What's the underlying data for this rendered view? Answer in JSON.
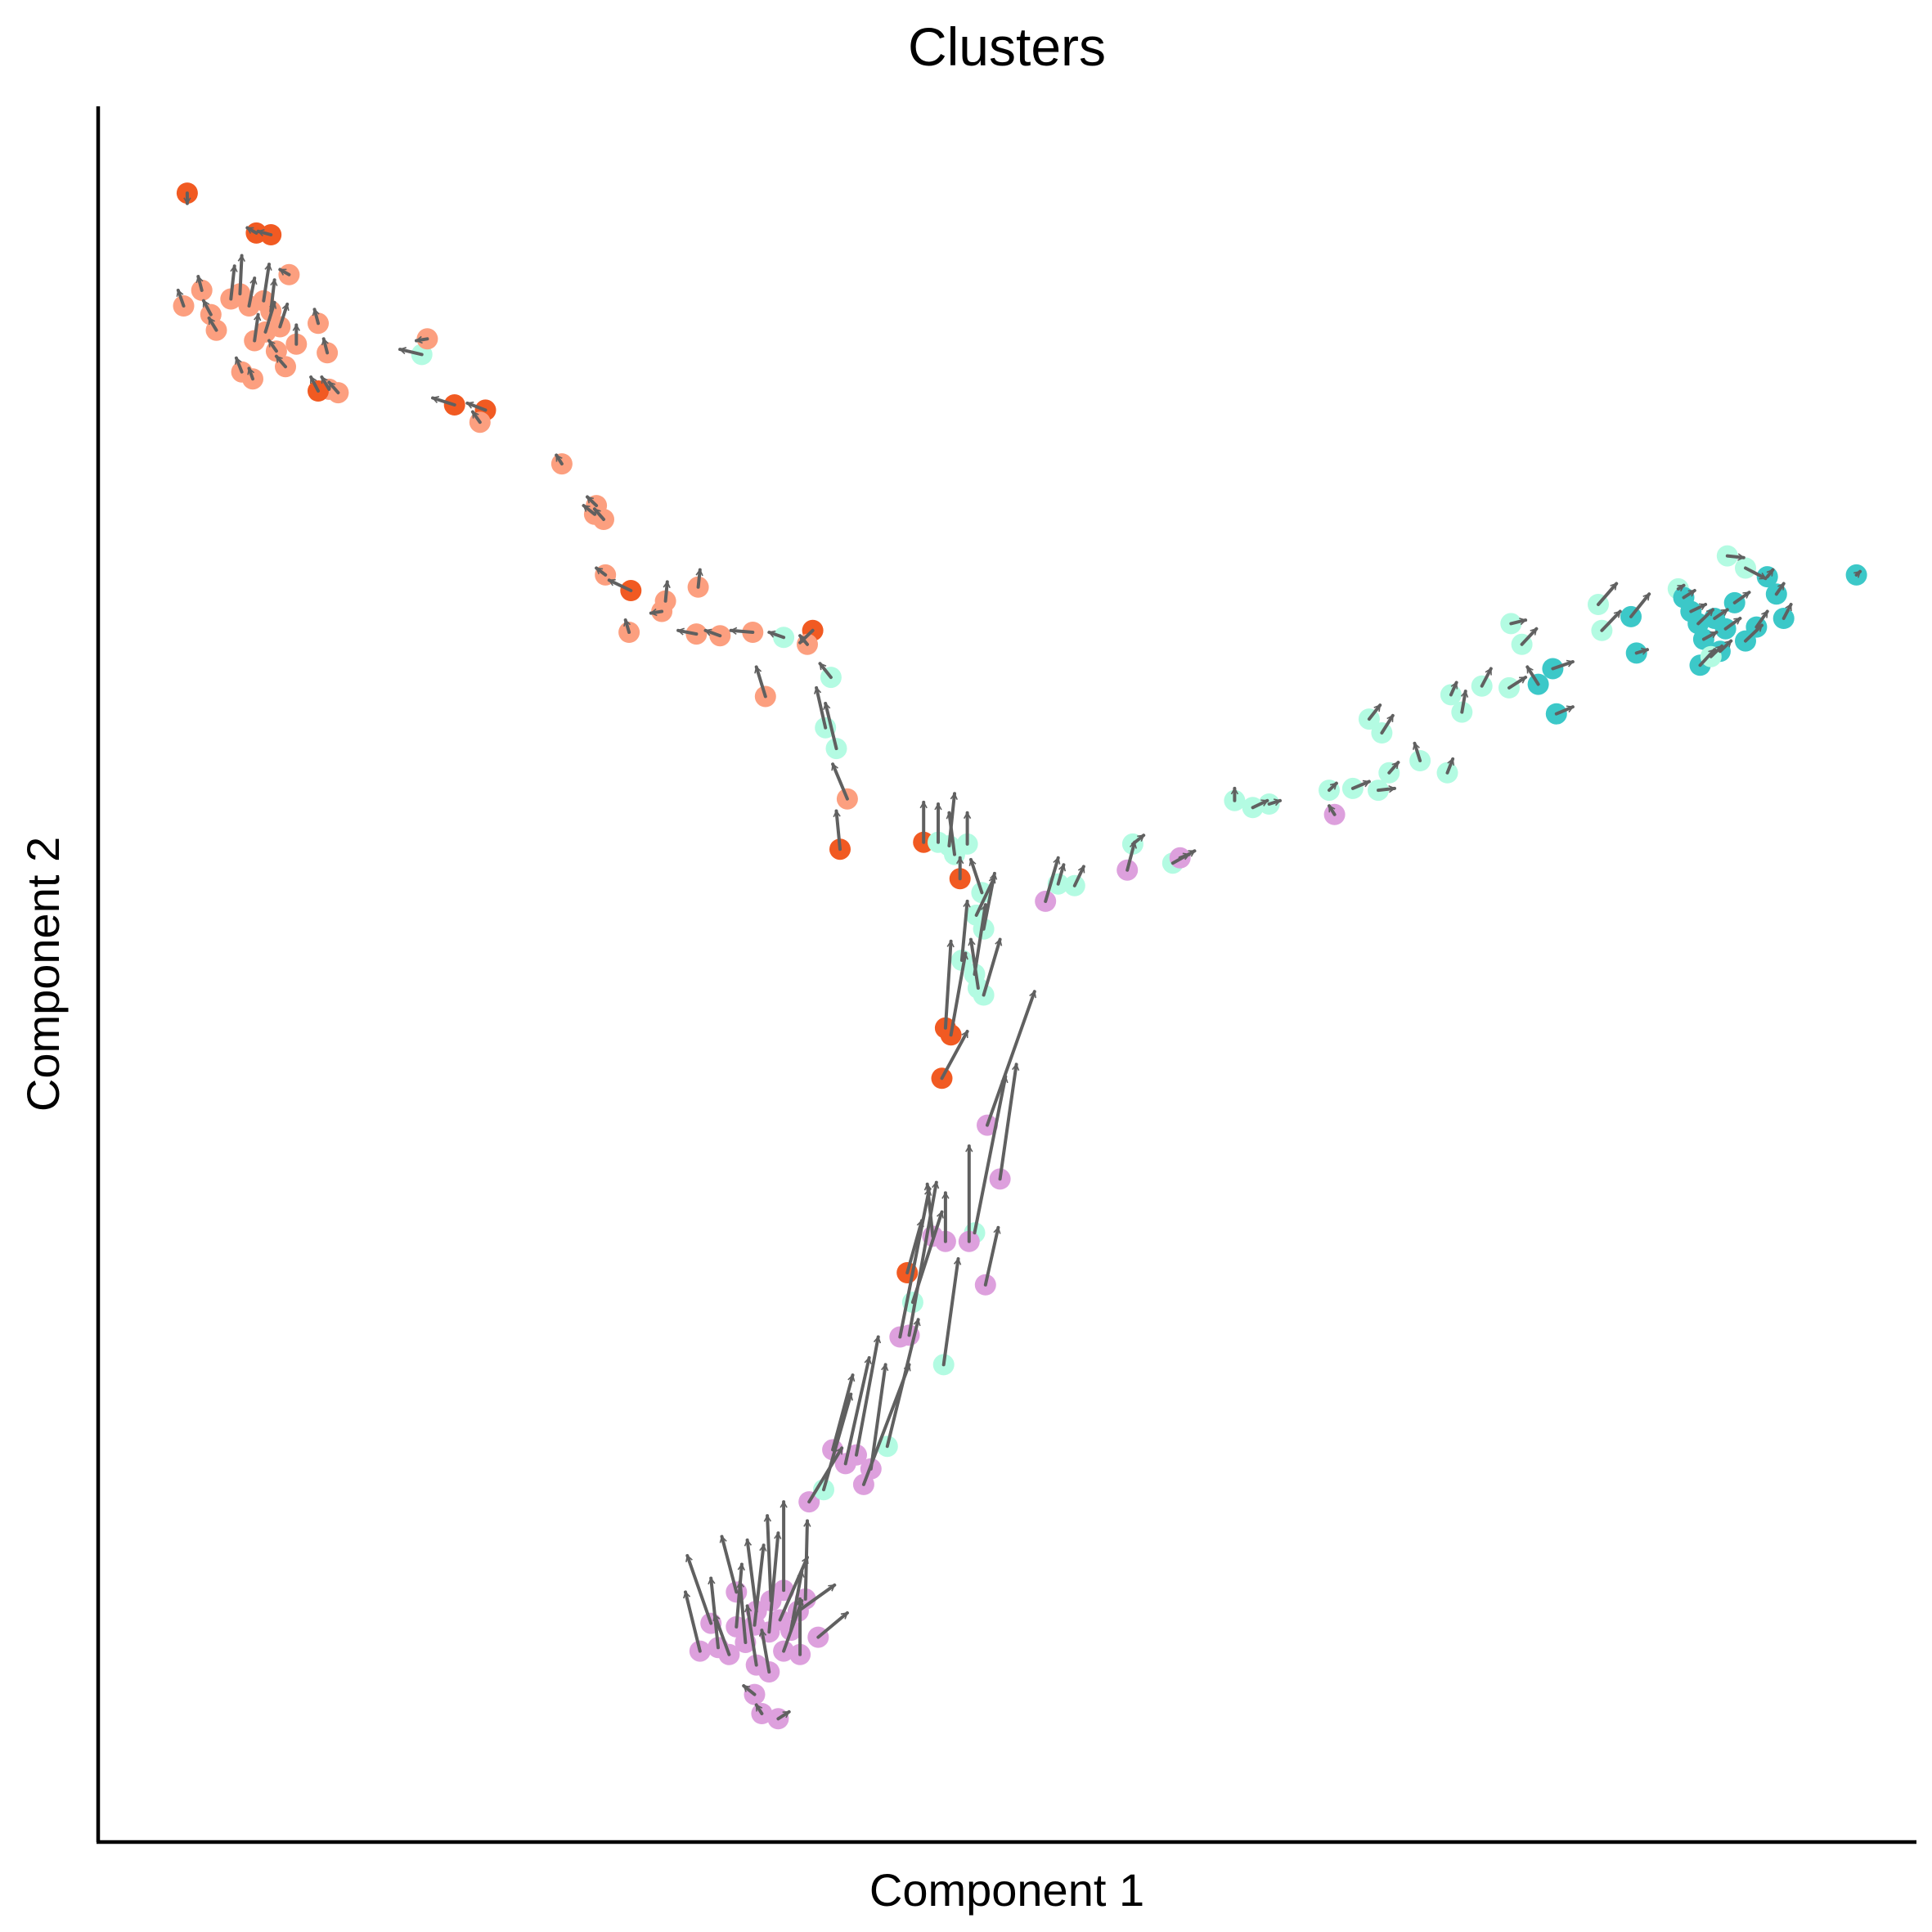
{
  "chart_data": {
    "type": "scatter",
    "title": "Clusters",
    "xlabel": "Component 1",
    "ylabel": "Component 2",
    "grid": false,
    "legend": "none",
    "xlim": [
      0,
      100
    ],
    "ylim": [
      0,
      100
    ],
    "colors": {
      "dark_orange": "#f15a22",
      "light_orange": "#fc9f7f",
      "mint": "#b3fbe2",
      "teal": "#3cc8c8",
      "orchid": "#dda0dd",
      "arrow": "#606060"
    },
    "points": [
      {
        "x": 4.9,
        "y": 95.0,
        "c": "dark_orange",
        "dx": 0.0,
        "dy": -0.6
      },
      {
        "x": 8.7,
        "y": 92.7,
        "c": "dark_orange",
        "dx": -0.5,
        "dy": 0.3
      },
      {
        "x": 9.5,
        "y": 92.6,
        "c": "dark_orange",
        "dx": -0.7,
        "dy": 0.2
      },
      {
        "x": 10.5,
        "y": 90.3,
        "c": "light_orange",
        "dx": -0.5,
        "dy": 0.3
      },
      {
        "x": 5.7,
        "y": 89.4,
        "c": "light_orange",
        "dx": -0.2,
        "dy": 0.8
      },
      {
        "x": 4.7,
        "y": 88.5,
        "c": "light_orange",
        "dx": -0.3,
        "dy": 0.9
      },
      {
        "x": 6.2,
        "y": 88.0,
        "c": "light_orange",
        "dx": -0.4,
        "dy": 0.8
      },
      {
        "x": 6.5,
        "y": 87.1,
        "c": "light_orange",
        "dx": -0.4,
        "dy": 0.7
      },
      {
        "x": 7.3,
        "y": 88.9,
        "c": "light_orange",
        "dx": 0.2,
        "dy": 1.9
      },
      {
        "x": 7.8,
        "y": 89.2,
        "c": "light_orange",
        "dx": 0.1,
        "dy": 2.2
      },
      {
        "x": 8.3,
        "y": 88.5,
        "c": "light_orange",
        "dx": 0.3,
        "dy": 1.6
      },
      {
        "x": 9.1,
        "y": 88.8,
        "c": "light_orange",
        "dx": 0.3,
        "dy": 2.1
      },
      {
        "x": 9.5,
        "y": 88.2,
        "c": "light_orange",
        "dx": 0.2,
        "dy": 1.8
      },
      {
        "x": 10.0,
        "y": 87.3,
        "c": "light_orange",
        "dx": 0.4,
        "dy": 1.3
      },
      {
        "x": 9.2,
        "y": 87.0,
        "c": "light_orange",
        "dx": 0.5,
        "dy": 1.7
      },
      {
        "x": 8.6,
        "y": 86.5,
        "c": "light_orange",
        "dx": 0.2,
        "dy": 1.5
      },
      {
        "x": 10.9,
        "y": 86.3,
        "c": "light_orange",
        "dx": 0.0,
        "dy": 1.1
      },
      {
        "x": 9.8,
        "y": 85.9,
        "c": "light_orange",
        "dx": -0.4,
        "dy": 0.6
      },
      {
        "x": 12.1,
        "y": 87.5,
        "c": "light_orange",
        "dx": -0.2,
        "dy": 0.8
      },
      {
        "x": 12.6,
        "y": 85.8,
        "c": "light_orange",
        "dx": -0.2,
        "dy": 0.8
      },
      {
        "x": 10.3,
        "y": 85.0,
        "c": "light_orange",
        "dx": -0.5,
        "dy": 0.6
      },
      {
        "x": 7.9,
        "y": 84.7,
        "c": "light_orange",
        "dx": -0.3,
        "dy": 0.8
      },
      {
        "x": 8.5,
        "y": 84.3,
        "c": "light_orange",
        "dx": -0.2,
        "dy": 0.6
      },
      {
        "x": 12.7,
        "y": 83.7,
        "c": "light_orange",
        "dx": -0.4,
        "dy": 0.7
      },
      {
        "x": 13.2,
        "y": 83.5,
        "c": "light_orange",
        "dx": -0.5,
        "dy": 0.6
      },
      {
        "x": 12.1,
        "y": 83.6,
        "c": "dark_orange",
        "dx": -0.4,
        "dy": 0.8
      },
      {
        "x": 17.8,
        "y": 85.7,
        "c": "mint",
        "dx": -1.2,
        "dy": 0.3
      },
      {
        "x": 18.1,
        "y": 86.6,
        "c": "light_orange",
        "dx": -0.6,
        "dy": -0.1
      },
      {
        "x": 19.6,
        "y": 82.8,
        "c": "dark_orange",
        "dx": -1.2,
        "dy": 0.4
      },
      {
        "x": 21.3,
        "y": 82.5,
        "c": "dark_orange",
        "dx": -1.0,
        "dy": 0.4
      },
      {
        "x": 21.0,
        "y": 81.8,
        "c": "light_orange",
        "dx": -0.4,
        "dy": 0.6
      },
      {
        "x": 25.5,
        "y": 79.4,
        "c": "light_orange",
        "dx": -0.3,
        "dy": 0.5
      },
      {
        "x": 27.4,
        "y": 77.0,
        "c": "light_orange",
        "dx": -0.5,
        "dy": 0.5
      },
      {
        "x": 27.3,
        "y": 76.5,
        "c": "light_orange",
        "dx": -0.6,
        "dy": 0.5
      },
      {
        "x": 27.8,
        "y": 76.2,
        "c": "light_orange",
        "dx": -0.5,
        "dy": 0.6
      },
      {
        "x": 27.9,
        "y": 73.0,
        "c": "light_orange",
        "dx": -0.5,
        "dy": 0.4
      },
      {
        "x": 29.3,
        "y": 72.1,
        "c": "dark_orange",
        "dx": -1.2,
        "dy": 0.6
      },
      {
        "x": 29.2,
        "y": 69.7,
        "c": "light_orange",
        "dx": -0.2,
        "dy": 0.7
      },
      {
        "x": 31.2,
        "y": 71.5,
        "c": "light_orange",
        "dx": 0.1,
        "dy": 1.1
      },
      {
        "x": 33.0,
        "y": 72.3,
        "c": "light_orange",
        "dx": 0.1,
        "dy": 1.0
      },
      {
        "x": 31.0,
        "y": 70.9,
        "c": "light_orange",
        "dx": -0.6,
        "dy": -0.1
      },
      {
        "x": 32.9,
        "y": 69.6,
        "c": "light_orange",
        "dx": -1.0,
        "dy": 0.2
      },
      {
        "x": 34.2,
        "y": 69.5,
        "c": "light_orange",
        "dx": -0.8,
        "dy": 0.3
      },
      {
        "x": 36.0,
        "y": 69.7,
        "c": "light_orange",
        "dx": -1.2,
        "dy": 0.1
      },
      {
        "x": 37.7,
        "y": 69.4,
        "c": "mint",
        "dx": -0.8,
        "dy": 0.3
      },
      {
        "x": 39.3,
        "y": 69.8,
        "c": "dark_orange",
        "dx": -0.7,
        "dy": -0.7
      },
      {
        "x": 39.0,
        "y": 69.0,
        "c": "light_orange",
        "dx": -0.4,
        "dy": 0.5
      },
      {
        "x": 36.7,
        "y": 66.0,
        "c": "light_orange",
        "dx": -0.5,
        "dy": 1.7
      },
      {
        "x": 40.3,
        "y": 67.1,
        "c": "mint",
        "dx": -0.6,
        "dy": 0.8
      },
      {
        "x": 40.0,
        "y": 64.2,
        "c": "mint",
        "dx": -0.5,
        "dy": 2.3
      },
      {
        "x": 40.6,
        "y": 63.0,
        "c": "mint",
        "dx": -0.6,
        "dy": 2.6
      },
      {
        "x": 41.2,
        "y": 60.1,
        "c": "light_orange",
        "dx": -0.8,
        "dy": 2.0
      },
      {
        "x": 40.8,
        "y": 57.2,
        "c": "dark_orange",
        "dx": -0.2,
        "dy": 2.2
      },
      {
        "x": 45.4,
        "y": 57.6,
        "c": "dark_orange",
        "dx": 0.0,
        "dy": 2.3
      },
      {
        "x": 46.2,
        "y": 57.6,
        "c": "mint",
        "dx": 0.0,
        "dy": 2.2
      },
      {
        "x": 46.8,
        "y": 57.4,
        "c": "mint",
        "dx": 0.3,
        "dy": 3.0
      },
      {
        "x": 47.1,
        "y": 56.9,
        "c": "mint",
        "dx": -0.3,
        "dy": 2.4
      },
      {
        "x": 47.8,
        "y": 57.5,
        "c": "mint",
        "dx": 0.0,
        "dy": 1.8
      },
      {
        "x": 47.4,
        "y": 55.5,
        "c": "dark_orange",
        "dx": 0.0,
        "dy": 1.2
      },
      {
        "x": 48.6,
        "y": 54.7,
        "c": "mint",
        "dx": -0.6,
        "dy": 1.9
      },
      {
        "x": 48.3,
        "y": 53.4,
        "c": "mint",
        "dx": 1.0,
        "dy": 2.2
      },
      {
        "x": 48.7,
        "y": 52.6,
        "c": "mint",
        "dx": 0.6,
        "dy": 3.2
      },
      {
        "x": 47.5,
        "y": 50.8,
        "c": "mint",
        "dx": 0.3,
        "dy": 3.4
      },
      {
        "x": 48.2,
        "y": 50.0,
        "c": "mint",
        "dx": 0.6,
        "dy": 4.0
      },
      {
        "x": 48.7,
        "y": 48.8,
        "c": "mint",
        "dx": 0.9,
        "dy": 3.2
      },
      {
        "x": 48.4,
        "y": 49.2,
        "c": "mint",
        "dx": -0.4,
        "dy": 2.8
      },
      {
        "x": 46.6,
        "y": 46.9,
        "c": "dark_orange",
        "dx": 0.3,
        "dy": 5.0
      },
      {
        "x": 46.9,
        "y": 46.5,
        "c": "dark_orange",
        "dx": 0.8,
        "dy": 4.7
      },
      {
        "x": 46.4,
        "y": 44.0,
        "c": "dark_orange",
        "dx": 1.4,
        "dy": 2.7
      },
      {
        "x": 48.9,
        "y": 41.3,
        "c": "orchid",
        "dx": 2.6,
        "dy": 7.7
      },
      {
        "x": 49.6,
        "y": 38.2,
        "c": "orchid",
        "dx": 0.9,
        "dy": 6.6
      },
      {
        "x": 48.2,
        "y": 35.1,
        "c": "mint",
        "dx": 1.7,
        "dy": 9.0
      },
      {
        "x": 47.9,
        "y": 34.6,
        "c": "orchid",
        "dx": 0.0,
        "dy": 5.5
      },
      {
        "x": 45.9,
        "y": 34.9,
        "c": "orchid",
        "dx": -0.3,
        "dy": 3.0
      },
      {
        "x": 46.6,
        "y": 34.6,
        "c": "orchid",
        "dx": 0.0,
        "dy": 2.8
      },
      {
        "x": 48.8,
        "y": 32.1,
        "c": "orchid",
        "dx": 0.7,
        "dy": 3.3
      },
      {
        "x": 44.5,
        "y": 32.8,
        "c": "dark_orange",
        "dx": 0.8,
        "dy": 3.0
      },
      {
        "x": 44.8,
        "y": 31.1,
        "c": "mint",
        "dx": 1.6,
        "dy": 5.2
      },
      {
        "x": 46.5,
        "y": 27.5,
        "c": "mint",
        "dx": 0.8,
        "dy": 6.1
      },
      {
        "x": 44.1,
        "y": 29.1,
        "c": "orchid",
        "dx": 1.6,
        "dy": 8.5
      },
      {
        "x": 44.6,
        "y": 29.2,
        "c": "orchid",
        "dx": 1.5,
        "dy": 8.8
      },
      {
        "x": 43.4,
        "y": 22.8,
        "c": "mint",
        "dx": 1.7,
        "dy": 7.3
      },
      {
        "x": 42.1,
        "y": 20.6,
        "c": "orchid",
        "dx": 2.5,
        "dy": 6.9
      },
      {
        "x": 42.5,
        "y": 21.5,
        "c": "orchid",
        "dx": 0.8,
        "dy": 6.0
      },
      {
        "x": 41.7,
        "y": 22.3,
        "c": "orchid",
        "dx": 1.2,
        "dy": 6.8
      },
      {
        "x": 41.1,
        "y": 21.8,
        "c": "orchid",
        "dx": 1.3,
        "dy": 6.1
      },
      {
        "x": 40.4,
        "y": 22.6,
        "c": "orchid",
        "dx": 1.1,
        "dy": 4.3
      },
      {
        "x": 39.1,
        "y": 19.6,
        "c": "orchid",
        "dx": 1.8,
        "dy": 3.1
      },
      {
        "x": 39.9,
        "y": 20.3,
        "c": "mint",
        "dx": 1.5,
        "dy": 5.5
      },
      {
        "x": 34.1,
        "y": 11.2,
        "c": "orchid",
        "dx": -0.4,
        "dy": 4.0
      },
      {
        "x": 34.7,
        "y": 10.8,
        "c": "orchid",
        "dx": -0.8,
        "dy": 2.3
      },
      {
        "x": 35.6,
        "y": 11.5,
        "c": "orchid",
        "dx": -0.3,
        "dy": 3.5
      },
      {
        "x": 35.1,
        "y": 12.4,
        "c": "orchid",
        "dx": 0.3,
        "dy": 3.6
      },
      {
        "x": 33.1,
        "y": 11.0,
        "c": "orchid",
        "dx": -0.8,
        "dy": 3.4
      },
      {
        "x": 33.7,
        "y": 12.6,
        "c": "orchid",
        "dx": -1.3,
        "dy": 3.9
      },
      {
        "x": 36.1,
        "y": 12.5,
        "c": "orchid",
        "dx": 0.5,
        "dy": 4.6
      },
      {
        "x": 36.9,
        "y": 12.1,
        "c": "orchid",
        "dx": 0.5,
        "dy": 5.7
      },
      {
        "x": 37.5,
        "y": 12.8,
        "c": "orchid",
        "dx": 1.5,
        "dy": 3.6
      },
      {
        "x": 38.1,
        "y": 12.2,
        "c": "orchid",
        "dx": 0.6,
        "dy": 3.4
      },
      {
        "x": 37.7,
        "y": 11.0,
        "c": "orchid",
        "dx": 1.0,
        "dy": 2.9
      },
      {
        "x": 38.6,
        "y": 10.8,
        "c": "orchid",
        "dx": 0.0,
        "dy": 3.2
      },
      {
        "x": 39.6,
        "y": 11.8,
        "c": "orchid",
        "dx": 1.6,
        "dy": 1.4
      },
      {
        "x": 38.5,
        "y": 13.3,
        "c": "orchid",
        "dx": 2.0,
        "dy": 1.5
      },
      {
        "x": 36.2,
        "y": 13.3,
        "c": "orchid",
        "dx": -0.5,
        "dy": 4.1
      },
      {
        "x": 37.0,
        "y": 13.9,
        "c": "orchid",
        "dx": -0.2,
        "dy": 4.9
      },
      {
        "x": 37.7,
        "y": 14.5,
        "c": "orchid",
        "dx": 0.0,
        "dy": 5.1
      },
      {
        "x": 38.9,
        "y": 14.0,
        "c": "orchid",
        "dx": 0.1,
        "dy": 4.5
      },
      {
        "x": 35.1,
        "y": 14.4,
        "c": "orchid",
        "dx": -0.8,
        "dy": 3.2
      },
      {
        "x": 36.2,
        "y": 10.2,
        "c": "orchid",
        "dx": -0.5,
        "dy": 3.4
      },
      {
        "x": 36.9,
        "y": 9.8,
        "c": "orchid",
        "dx": -0.4,
        "dy": 2.4
      },
      {
        "x": 36.1,
        "y": 8.5,
        "c": "orchid",
        "dx": -0.6,
        "dy": 0.5
      },
      {
        "x": 37.4,
        "y": 7.1,
        "c": "orchid",
        "dx": 0.6,
        "dy": 0.4
      },
      {
        "x": 36.5,
        "y": 7.4,
        "c": "orchid",
        "dx": -0.3,
        "dy": 0.5
      },
      {
        "x": 52.1,
        "y": 54.2,
        "c": "orchid",
        "dx": 0.7,
        "dy": 2.5
      },
      {
        "x": 52.8,
        "y": 55.2,
        "c": "mint",
        "dx": 0.3,
        "dy": 1.1
      },
      {
        "x": 53.7,
        "y": 55.1,
        "c": "mint",
        "dx": 0.5,
        "dy": 1.1
      },
      {
        "x": 56.6,
        "y": 56.0,
        "c": "orchid",
        "dx": 0.4,
        "dy": 1.6
      },
      {
        "x": 56.9,
        "y": 57.5,
        "c": "mint",
        "dx": 0.6,
        "dy": 0.5
      },
      {
        "x": 59.1,
        "y": 56.4,
        "c": "mint",
        "dx": 1.2,
        "dy": 0.7
      },
      {
        "x": 59.5,
        "y": 56.7,
        "c": "orchid",
        "dx": 0.5,
        "dy": 0.2
      },
      {
        "x": 62.5,
        "y": 60.0,
        "c": "mint",
        "dx": 0.0,
        "dy": 0.7
      },
      {
        "x": 63.5,
        "y": 59.6,
        "c": "mint",
        "dx": 0.8,
        "dy": 0.4
      },
      {
        "x": 64.4,
        "y": 59.8,
        "c": "mint",
        "dx": 0.6,
        "dy": 0.2
      },
      {
        "x": 68.0,
        "y": 59.2,
        "c": "orchid",
        "dx": -0.3,
        "dy": 0.5
      },
      {
        "x": 67.7,
        "y": 60.6,
        "c": "mint",
        "dx": 0.4,
        "dy": 0.4
      },
      {
        "x": 69.0,
        "y": 60.7,
        "c": "mint",
        "dx": 0.9,
        "dy": 0.4
      },
      {
        "x": 70.4,
        "y": 60.6,
        "c": "mint",
        "dx": 0.9,
        "dy": 0.1
      },
      {
        "x": 71.0,
        "y": 61.6,
        "c": "mint",
        "dx": 0.5,
        "dy": 0.6
      },
      {
        "x": 69.9,
        "y": 64.7,
        "c": "mint",
        "dx": 0.6,
        "dy": 0.8
      },
      {
        "x": 70.6,
        "y": 63.9,
        "c": "mint",
        "dx": 0.6,
        "dy": 1.0
      },
      {
        "x": 72.7,
        "y": 62.3,
        "c": "mint",
        "dx": -0.3,
        "dy": 1.0
      },
      {
        "x": 74.2,
        "y": 61.6,
        "c": "mint",
        "dx": 0.3,
        "dy": 0.8
      },
      {
        "x": 75.0,
        "y": 65.1,
        "c": "mint",
        "dx": 0.2,
        "dy": 1.2
      },
      {
        "x": 74.4,
        "y": 66.1,
        "c": "mint",
        "dx": 0.3,
        "dy": 0.7
      },
      {
        "x": 76.1,
        "y": 66.6,
        "c": "mint",
        "dx": 0.5,
        "dy": 1.0
      },
      {
        "x": 77.6,
        "y": 66.5,
        "c": "mint",
        "dx": 0.9,
        "dy": 0.6
      },
      {
        "x": 79.2,
        "y": 66.7,
        "c": "teal",
        "dx": -0.6,
        "dy": 1.0
      },
      {
        "x": 80.0,
        "y": 67.6,
        "c": "teal",
        "dx": 1.1,
        "dy": 0.4
      },
      {
        "x": 80.2,
        "y": 65.0,
        "c": "teal",
        "dx": 0.9,
        "dy": 0.4
      },
      {
        "x": 78.3,
        "y": 69.0,
        "c": "mint",
        "dx": 0.8,
        "dy": 0.9
      },
      {
        "x": 77.7,
        "y": 70.2,
        "c": "mint",
        "dx": 0.8,
        "dy": 0.2
      },
      {
        "x": 82.5,
        "y": 71.3,
        "c": "mint",
        "dx": 1.0,
        "dy": 1.2
      },
      {
        "x": 82.7,
        "y": 69.8,
        "c": "mint",
        "dx": 1.0,
        "dy": 1.1
      },
      {
        "x": 84.3,
        "y": 70.6,
        "c": "teal",
        "dx": 1.0,
        "dy": 1.3
      },
      {
        "x": 84.6,
        "y": 68.5,
        "c": "teal",
        "dx": 0.6,
        "dy": 0.2
      },
      {
        "x": 86.9,
        "y": 72.2,
        "c": "mint",
        "dx": 0.3,
        "dy": 0.2
      },
      {
        "x": 87.2,
        "y": 71.7,
        "c": "teal",
        "dx": 0.6,
        "dy": 0.4
      },
      {
        "x": 87.6,
        "y": 70.9,
        "c": "teal",
        "dx": 0.8,
        "dy": 0.4
      },
      {
        "x": 88.0,
        "y": 70.2,
        "c": "teal",
        "dx": 0.8,
        "dy": 0.8
      },
      {
        "x": 88.3,
        "y": 69.3,
        "c": "teal",
        "dx": 0.7,
        "dy": 0.4
      },
      {
        "x": 88.9,
        "y": 70.5,
        "c": "teal",
        "dx": 0.7,
        "dy": 0.5
      },
      {
        "x": 89.5,
        "y": 69.9,
        "c": "teal",
        "dx": 0.8,
        "dy": 0.6
      },
      {
        "x": 90.0,
        "y": 71.4,
        "c": "teal",
        "dx": 0.8,
        "dy": 0.6
      },
      {
        "x": 89.2,
        "y": 68.6,
        "c": "teal",
        "dx": 0.6,
        "dy": 0.6
      },
      {
        "x": 90.6,
        "y": 69.2,
        "c": "teal",
        "dx": 0.9,
        "dy": 0.9
      },
      {
        "x": 91.2,
        "y": 70.0,
        "c": "teal",
        "dx": 0.6,
        "dy": 0.9
      },
      {
        "x": 88.1,
        "y": 67.8,
        "c": "teal",
        "dx": 0.8,
        "dy": 0.9
      },
      {
        "x": 88.7,
        "y": 68.3,
        "c": "mint",
        "dx": 0.6,
        "dy": 0.6
      },
      {
        "x": 92.3,
        "y": 71.9,
        "c": "teal",
        "dx": 0.4,
        "dy": 0.6
      },
      {
        "x": 91.8,
        "y": 72.9,
        "c": "teal",
        "dx": 0.3,
        "dy": 0.4
      },
      {
        "x": 92.7,
        "y": 70.5,
        "c": "teal",
        "dx": 0.4,
        "dy": 0.8
      },
      {
        "x": 89.6,
        "y": 74.1,
        "c": "mint",
        "dx": 0.9,
        "dy": -0.1
      },
      {
        "x": 90.6,
        "y": 73.4,
        "c": "mint",
        "dx": 1.1,
        "dy": -0.6
      },
      {
        "x": 96.7,
        "y": 73.0,
        "c": "teal",
        "dx": 0.2,
        "dy": 0.2
      }
    ]
  }
}
